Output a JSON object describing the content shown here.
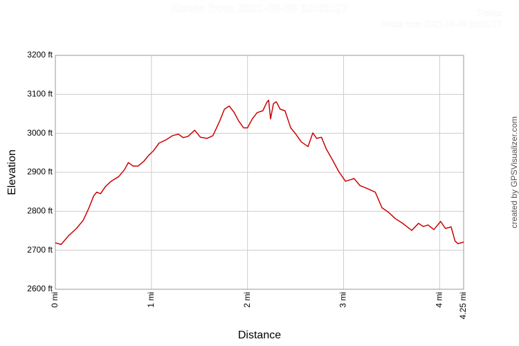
{
  "chart_data": {
    "type": "line",
    "title": "Route from 2021-08-09 10:01:27",
    "legend_title": "Tracks",
    "credit": "created by GPSVisualizer.com",
    "x_label": "Distance",
    "y_label": "Elevation",
    "xlim": [
      0,
      4.25
    ],
    "ylim": [
      2600,
      3200
    ],
    "xticks": [
      {
        "value": 0,
        "label": "0 mi"
      },
      {
        "value": 1,
        "label": "1 mi"
      },
      {
        "value": 2,
        "label": "2 mi"
      },
      {
        "value": 3,
        "label": "3 mi"
      },
      {
        "value": 4,
        "label": "4 mi"
      },
      {
        "value": 4.25,
        "label": "4.25 mi"
      }
    ],
    "yticks": [
      {
        "value": 2600,
        "label": "2600 ft"
      },
      {
        "value": 2700,
        "label": "2700 ft"
      },
      {
        "value": 2800,
        "label": "2800 ft"
      },
      {
        "value": 2900,
        "label": "2900 ft"
      },
      {
        "value": 3000,
        "label": "3000 ft"
      },
      {
        "value": 3100,
        "label": "3100 ft"
      },
      {
        "value": 3200,
        "label": "3200 ft"
      }
    ],
    "grid": true,
    "x": [
      0,
      0.06,
      0.14,
      0.22,
      0.29,
      0.35,
      0.4,
      0.43,
      0.47,
      0.52,
      0.58,
      0.66,
      0.72,
      0.76,
      0.81,
      0.86,
      0.92,
      0.97,
      1.02,
      1.08,
      1.15,
      1.22,
      1.28,
      1.33,
      1.38,
      1.45,
      1.51,
      1.58,
      1.64,
      1.71,
      1.76,
      1.81,
      1.86,
      1.91,
      1.96,
      2.0,
      2.05,
      2.1,
      2.16,
      2.2,
      2.22,
      2.24,
      2.27,
      2.3,
      2.34,
      2.39,
      2.45,
      2.5,
      2.56,
      2.63,
      2.68,
      2.72,
      2.77,
      2.82,
      2.88,
      2.95,
      3.02,
      3.11,
      3.17,
      3.24,
      3.33,
      3.4,
      3.47,
      3.54,
      3.61,
      3.71,
      3.78,
      3.83,
      3.88,
      3.94,
      4.01,
      4.06,
      4.12,
      4.16,
      4.19,
      4.25
    ],
    "series": [
      {
        "name": "Route from 2021-08-09 10:01:27",
        "color": "#cc0000",
        "values": [
          2719,
          2715,
          2738,
          2756,
          2777,
          2809,
          2840,
          2849,
          2845,
          2863,
          2877,
          2889,
          2907,
          2925,
          2916,
          2916,
          2928,
          2943,
          2955,
          2975,
          2983,
          2994,
          2998,
          2989,
          2992,
          3008,
          2990,
          2987,
          2994,
          3031,
          3062,
          3070,
          3054,
          3031,
          3014,
          3014,
          3037,
          3053,
          3058,
          3079,
          3085,
          3037,
          3076,
          3081,
          3062,
          3058,
          3014,
          2999,
          2978,
          2966,
          3001,
          2987,
          2990,
          2960,
          2934,
          2902,
          2877,
          2884,
          2866,
          2859,
          2849,
          2809,
          2797,
          2781,
          2770,
          2751,
          2769,
          2761,
          2765,
          2753,
          2774,
          2756,
          2760,
          2724,
          2717,
          2721
        ]
      }
    ]
  }
}
